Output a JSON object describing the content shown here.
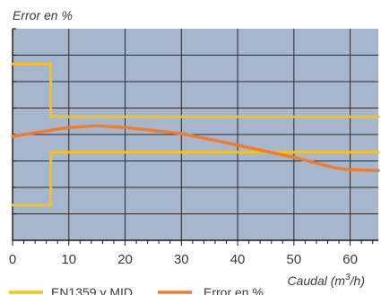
{
  "chart_data": {
    "type": "line",
    "ylabel": "Error en %",
    "xlabel": "Caudal (m³/h)",
    "xlabel_main": "Caudal (m",
    "xlabel_sup": "3",
    "xlabel_end": "/h)",
    "xlim": [
      0,
      65
    ],
    "xticks": [
      0,
      10,
      20,
      30,
      40,
      50,
      60
    ],
    "xtick_labels": [
      "0",
      "10",
      "20",
      "30",
      "40",
      "50",
      "60"
    ],
    "y_hidden_range": [
      -6,
      6
    ],
    "grid": true,
    "background_color": "#a6b6cc",
    "grid_color": "#2a2a2a",
    "legend_position": "bottom",
    "series": [
      {
        "name": "EN1359 y MID",
        "color": "#f5c21a",
        "segments": [
          {
            "x": [
              0,
              6.8,
              6.8,
              65
            ],
            "y": [
              4,
              4,
              1,
              1
            ]
          },
          {
            "x": [
              0,
              6.8,
              6.8,
              65
            ],
            "y": [
              -4,
              -4,
              -1,
              -1
            ]
          }
        ]
      },
      {
        "name": "Error en %",
        "color": "#ee7d30",
        "x": [
          0,
          10,
          15,
          20,
          30,
          40,
          50,
          57.5,
          60,
          65
        ],
        "y": [
          -0.1,
          0.4,
          0.5,
          0.4,
          0.05,
          -0.6,
          -1.3,
          -1.9,
          -2.0,
          -2.05
        ]
      }
    ]
  }
}
